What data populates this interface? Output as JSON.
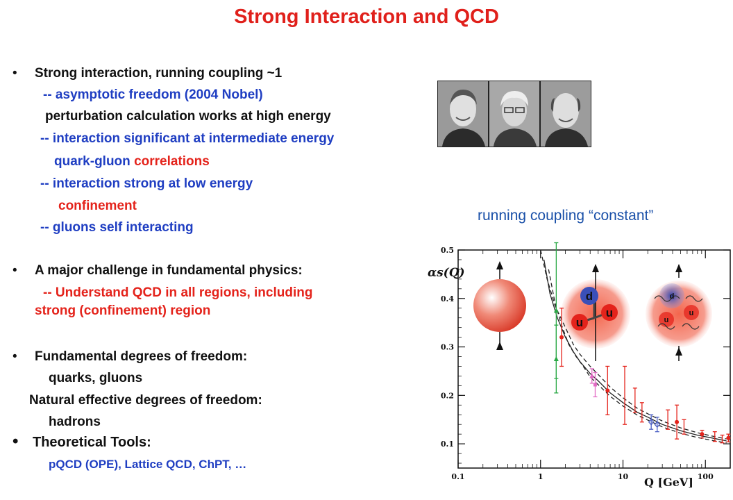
{
  "title": "Strong Interaction and QCD",
  "left": {
    "l1": "Strong interaction, running coupling ~1",
    "l2": "-- asymptotic freedom (2004 Nobel)",
    "l3": "perturbation calculation works at high energy",
    "l4": "-- interaction significant at intermediate energy",
    "l5a": "quark-gluon ",
    "l5b": "correlations",
    "l6": "-- interaction strong at low energy",
    "l7": "confinement",
    "l8": "-- gluons self interacting",
    "l9": "A major challenge in fundamental physics:",
    "l10": "-- Understand QCD in all regions, including",
    "l11": "strong (confinement) region",
    "l12": "Fundamental degrees of freedom:",
    "l13": "quarks, gluons",
    "l14": "Natural effective degrees of freedom:",
    "l15": "hadrons",
    "l16": "Theoretical Tools:",
    "l17": "pQCD (OPE), Lattice QCD, ChPT, …",
    "bullet": "•"
  },
  "caption": "running coupling “constant”",
  "chart_data": {
    "type": "scatter",
    "title": "",
    "xlabel": "Q [GeV]",
    "ylabel": "αs(Q)",
    "xscale": "log",
    "xlim": [
      0.1,
      200
    ],
    "ylim": [
      0.05,
      0.5
    ],
    "xticks": [
      "0.1",
      "1",
      "10",
      "100"
    ],
    "yticks": [
      "0.1",
      "0.2",
      "0.3",
      "0.4",
      "0.5"
    ],
    "grid": false,
    "curves": [
      {
        "name": "",
        "style": "solid",
        "x": [
          1.1,
          1.3,
          1.6,
          2,
          2.5,
          3,
          4,
          5,
          7,
          10,
          15,
          20,
          30,
          50,
          80,
          120,
          180
        ],
        "y": [
          0.48,
          0.41,
          0.36,
          0.32,
          0.29,
          0.27,
          0.245,
          0.23,
          0.205,
          0.185,
          0.165,
          0.155,
          0.14,
          0.127,
          0.118,
          0.112,
          0.106
        ]
      },
      {
        "name": "",
        "style": "dashed",
        "x": [
          1.0,
          1.2,
          1.5,
          2,
          2.5,
          3,
          4,
          5,
          7,
          10,
          15,
          20,
          30,
          50,
          80,
          120,
          180
        ],
        "y": [
          0.5,
          0.44,
          0.385,
          0.34,
          0.305,
          0.285,
          0.26,
          0.243,
          0.217,
          0.195,
          0.173,
          0.162,
          0.147,
          0.133,
          0.123,
          0.116,
          0.11
        ]
      },
      {
        "name": "",
        "style": "dashed",
        "x": [
          1.25,
          1.5,
          1.8,
          2.2,
          2.7,
          3.3,
          4,
          5,
          7,
          10,
          15,
          20,
          30,
          50,
          80,
          120,
          180
        ],
        "y": [
          0.46,
          0.39,
          0.345,
          0.305,
          0.28,
          0.26,
          0.238,
          0.222,
          0.198,
          0.178,
          0.159,
          0.149,
          0.135,
          0.122,
          0.113,
          0.107,
          0.102
        ]
      }
    ],
    "points": [
      {
        "x": 1.55,
        "y": 0.375,
        "err": 0.14,
        "color": "#2aa845",
        "marker": "triangle-up"
      },
      {
        "x": 1.55,
        "y": 0.275,
        "err": 0.07,
        "color": "#2aa845",
        "marker": "triangle-up"
      },
      {
        "x": 1.8,
        "y": 0.32,
        "err": 0.06,
        "color": "#e4231b",
        "marker": "circle"
      },
      {
        "x": 4.2,
        "y": 0.24,
        "err": 0.015,
        "color": "#e26bc4",
        "marker": "triangle-up"
      },
      {
        "x": 4.6,
        "y": 0.222,
        "err": 0.025,
        "color": "#e26bc4",
        "marker": "square"
      },
      {
        "x": 6.5,
        "y": 0.21,
        "err": 0.05,
        "color": "#e4231b",
        "marker": "circle"
      },
      {
        "x": 10.5,
        "y": 0.2,
        "err": 0.06,
        "color": "#e4231b",
        "marker": "bar"
      },
      {
        "x": 14,
        "y": 0.19,
        "err": 0.025,
        "color": "#e4231b",
        "marker": "bar"
      },
      {
        "x": 17,
        "y": 0.165,
        "err": 0.02,
        "color": "#e4231b",
        "marker": "bar"
      },
      {
        "x": 22,
        "y": 0.145,
        "err": 0.015,
        "color": "#4a5fc4",
        "marker": "diamond"
      },
      {
        "x": 26,
        "y": 0.14,
        "err": 0.015,
        "color": "#4a5fc4",
        "marker": "diamond"
      },
      {
        "x": 35,
        "y": 0.15,
        "err": 0.02,
        "color": "#e4231b",
        "marker": "bar"
      },
      {
        "x": 45,
        "y": 0.145,
        "err": 0.035,
        "color": "#e4231b",
        "marker": "circle"
      },
      {
        "x": 55,
        "y": 0.135,
        "err": 0.015,
        "color": "#e4231b",
        "marker": "bar"
      },
      {
        "x": 91,
        "y": 0.12,
        "err": 0.008,
        "color": "#e4231b",
        "marker": "circle"
      },
      {
        "x": 130,
        "y": 0.115,
        "err": 0.01,
        "color": "#e4231b",
        "marker": "bar"
      },
      {
        "x": 160,
        "y": 0.11,
        "err": 0.008,
        "color": "#e4231b",
        "marker": "bar"
      },
      {
        "x": 190,
        "y": 0.112,
        "err": 0.008,
        "color": "#e4231b",
        "marker": "circle"
      }
    ],
    "insets": [
      {
        "labels": []
      },
      {
        "labels": [
          "d",
          "u",
          "u"
        ]
      },
      {
        "labels": [
          "d",
          "u",
          "u"
        ]
      }
    ]
  }
}
